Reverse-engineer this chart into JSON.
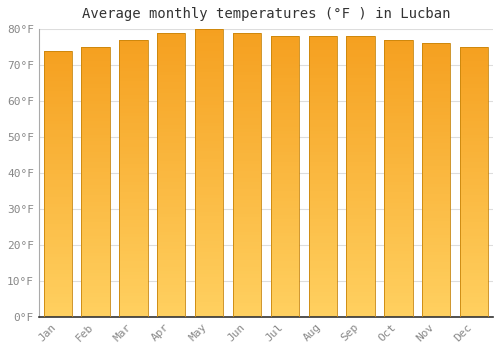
{
  "title": "Average monthly temperatures (°F ) in Lucban",
  "months": [
    "Jan",
    "Feb",
    "Mar",
    "Apr",
    "May",
    "Jun",
    "Jul",
    "Aug",
    "Sep",
    "Oct",
    "Nov",
    "Dec"
  ],
  "values": [
    74,
    75,
    77,
    79,
    80,
    79,
    78,
    78,
    78,
    77,
    76,
    75
  ],
  "bar_color_bottom": "#FFD060",
  "bar_color_top": "#F5A020",
  "bar_edge_color": "#C8840A",
  "ylim": [
    0,
    80
  ],
  "yticks": [
    0,
    10,
    20,
    30,
    40,
    50,
    60,
    70,
    80
  ],
  "ytick_labels": [
    "0°F",
    "10°F",
    "20°F",
    "30°F",
    "40°F",
    "50°F",
    "60°F",
    "70°F",
    "80°F"
  ],
  "background_color": "#ffffff",
  "grid_color": "#dddddd",
  "title_fontsize": 10,
  "tick_fontsize": 8,
  "font_family": "monospace",
  "bar_width": 0.75,
  "n_gradient_steps": 80
}
